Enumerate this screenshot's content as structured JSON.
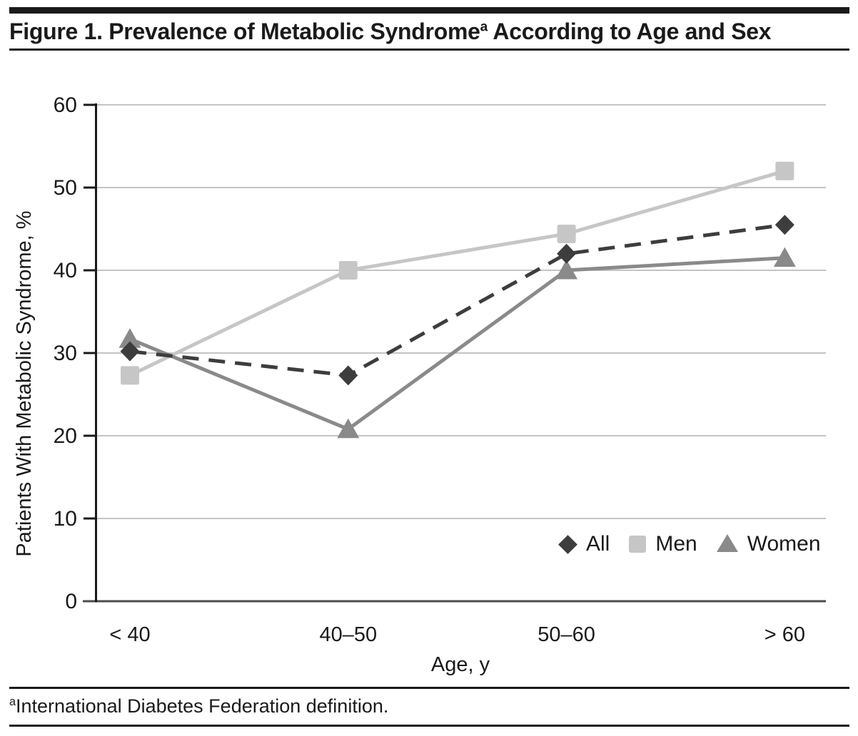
{
  "header": {
    "title_main": "Figure 1. Prevalence of Metabolic Syndrome",
    "title_sup": "a",
    "title_rest": " According to Age and Sex"
  },
  "footnote": {
    "sup": "a",
    "text": "International Diabetes Federation definition."
  },
  "chart_data": {
    "type": "line",
    "title": "Figure 1. Prevalence of Metabolic Syndrome According to Age and Sex",
    "categories": [
      "< 40",
      "40–50",
      "50–60",
      "> 60"
    ],
    "series": [
      {
        "name": "All",
        "marker": "diamond",
        "line_style": "dashed",
        "color": "#3d3d3d",
        "values": [
          30.2,
          27.3,
          42.0,
          45.5
        ]
      },
      {
        "name": "Men",
        "marker": "square",
        "line_style": "solid",
        "color": "#c6c6c6",
        "values": [
          27.3,
          40.0,
          44.4,
          52.0
        ]
      },
      {
        "name": "Women",
        "marker": "triangle",
        "line_style": "solid",
        "color": "#8a8a8a",
        "values": [
          31.7,
          20.8,
          40.0,
          41.5
        ]
      }
    ],
    "xlabel": "Age, y",
    "ylabel": "Patients With Metabolic Syndrome, %",
    "ylim": [
      0,
      60
    ],
    "yticks": [
      0,
      10,
      20,
      30,
      40,
      50,
      60
    ],
    "grid": true,
    "legend_position": "inside-bottom-right",
    "colors": {
      "grid": "#b0b0b0",
      "x_axis": "#4d4d4d",
      "y_axis": "#1a1a1a",
      "text": "#1a1a1a"
    }
  }
}
